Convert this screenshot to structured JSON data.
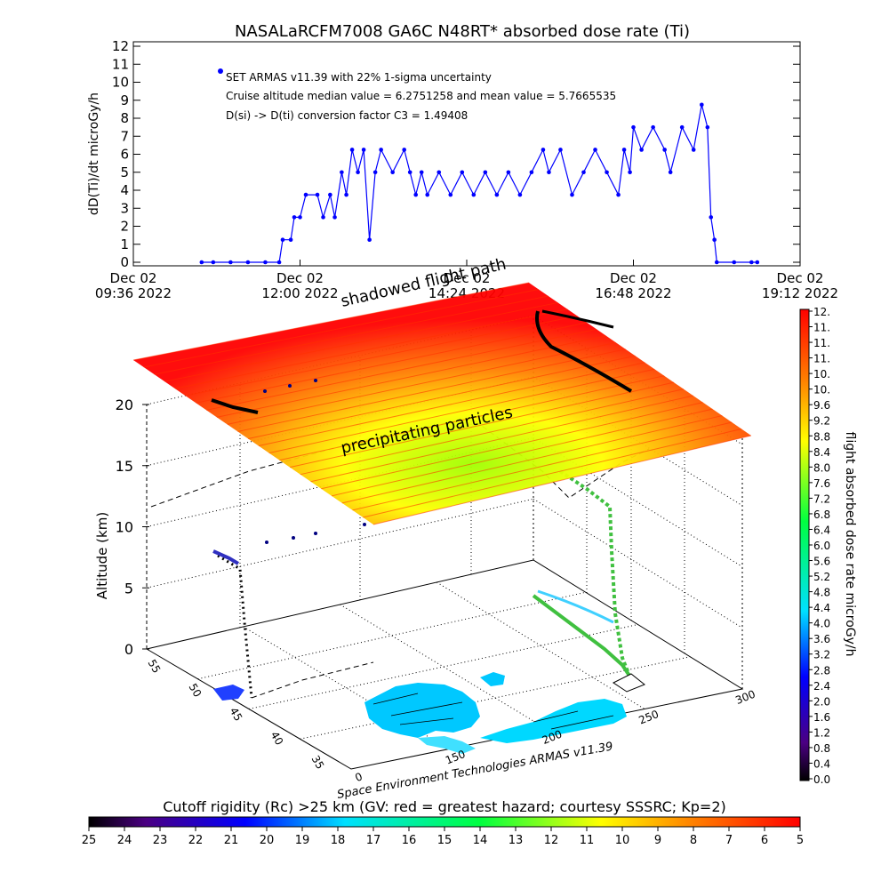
{
  "top_chart": {
    "title": "NASALaRCFM7008  GA6C N48RT* absorbed dose rate (Ti)",
    "ylabel": "dD(Ti)/dt microGy/h",
    "legend": [
      "SET ARMAS v11.39 with 22% 1-sigma uncertainty",
      "Cruise altitude median value = 6.2751258 and mean value = 5.7665535",
      "D(si) -> D(ti) conversion factor C3 = 1.49408"
    ],
    "x_ticks": [
      {
        "date": "Dec 02",
        "time": "09:36 2022"
      },
      {
        "date": "Dec 02",
        "time": "12:00 2022"
      },
      {
        "date": "Dec 02",
        "time": "14:24 2022"
      },
      {
        "date": "Dec 02",
        "time": "16:48 2022"
      },
      {
        "date": "Dec 02",
        "time": "19:12 2022"
      }
    ],
    "y_ticks": [
      "0",
      "1",
      "2",
      "3",
      "4",
      "5",
      "6",
      "7",
      "8",
      "9",
      "10",
      "11",
      "12"
    ]
  },
  "chart_data": [
    {
      "type": "line",
      "title": "NASALaRCFM7008  GA6C N48RT* absorbed dose rate (Ti)",
      "xlabel": "",
      "ylabel": "dD(Ti)/dt microGy/h",
      "x_range": [
        "2022-12-02 09:36",
        "2022-12-02 19:12"
      ],
      "ylim": [
        0,
        12
      ],
      "series": [
        {
          "name": "SET ARMAS v11.39 with 22% 1-sigma uncertainty",
          "color": "#0000ff",
          "points": [
            [
              "10:35",
              0
            ],
            [
              "10:45",
              0
            ],
            [
              "11:00",
              0
            ],
            [
              "11:15",
              0
            ],
            [
              "11:30",
              0
            ],
            [
              "11:42",
              0
            ],
            [
              "11:45",
              1.25
            ],
            [
              "11:52",
              1.25
            ],
            [
              "11:55",
              2.5
            ],
            [
              "12:00",
              2.5
            ],
            [
              "12:05",
              3.75
            ],
            [
              "12:15",
              3.75
            ],
            [
              "12:20",
              2.5
            ],
            [
              "12:26",
              3.75
            ],
            [
              "12:30",
              2.5
            ],
            [
              "12:36",
              5
            ],
            [
              "12:40",
              3.75
            ],
            [
              "12:45",
              6.25
            ],
            [
              "12:50",
              5
            ],
            [
              "12:55",
              6.25
            ],
            [
              "13:00",
              1.25
            ],
            [
              "13:05",
              5
            ],
            [
              "13:10",
              6.25
            ],
            [
              "13:20",
              5
            ],
            [
              "13:30",
              6.25
            ],
            [
              "13:35",
              5
            ],
            [
              "13:40",
              3.75
            ],
            [
              "13:45",
              5
            ],
            [
              "13:50",
              3.75
            ],
            [
              "14:00",
              5
            ],
            [
              "14:10",
              3.75
            ],
            [
              "14:20",
              5
            ],
            [
              "14:30",
              3.75
            ],
            [
              "14:40",
              5
            ],
            [
              "14:50",
              3.75
            ],
            [
              "15:00",
              5
            ],
            [
              "15:10",
              3.75
            ],
            [
              "15:20",
              5
            ],
            [
              "15:30",
              6.25
            ],
            [
              "15:35",
              5
            ],
            [
              "15:45",
              6.25
            ],
            [
              "15:55",
              3.75
            ],
            [
              "16:05",
              5
            ],
            [
              "16:15",
              6.25
            ],
            [
              "16:25",
              5
            ],
            [
              "16:35",
              3.75
            ],
            [
              "16:40",
              6.25
            ],
            [
              "16:45",
              5
            ],
            [
              "16:48",
              7.5
            ],
            [
              "16:55",
              6.25
            ],
            [
              "17:05",
              7.5
            ],
            [
              "17:15",
              6.25
            ],
            [
              "17:20",
              5
            ],
            [
              "17:30",
              7.5
            ],
            [
              "17:40",
              6.25
            ],
            [
              "17:47",
              8.75
            ],
            [
              "17:52",
              7.5
            ],
            [
              "17:55",
              2.5
            ],
            [
              "17:58",
              1.25
            ],
            [
              "18:00",
              0
            ],
            [
              "18:15",
              0
            ],
            [
              "18:30",
              0
            ],
            [
              "18:35",
              0
            ]
          ]
        }
      ],
      "annotations": [
        "SET ARMAS v11.39 with 22% 1-sigma uncertainty",
        "Cruise altitude median value = 6.2751258 and mean value = 5.7665535",
        "D(si) -> D(ti) conversion factor C3 = 1.49408"
      ]
    },
    {
      "type": "scatter",
      "title": "",
      "zlabel": "Altitude (km)",
      "zlim": [
        0,
        20
      ],
      "z_ticks": [
        "0",
        "5",
        "10",
        "15",
        "20"
      ],
      "lat_ticks": [
        "35",
        "40",
        "45",
        "50",
        "55"
      ],
      "lon_ticks": [
        "0",
        "150",
        "200",
        "250",
        "300"
      ],
      "colorbar": {
        "label": "flight absorbed dose rate microGy/h",
        "ticks": [
          "0.0",
          "0.4",
          "0.8",
          "1.2",
          "1.6",
          "2.0",
          "2.4",
          "2.8",
          "3.2",
          "3.6",
          "4.0",
          "4.4",
          "4.8",
          "5.2",
          "5.6",
          "6.0",
          "6.4",
          "6.8",
          "7.2",
          "7.6",
          "8.0",
          "8.4",
          "8.8",
          "9.2",
          "9.6",
          "10.",
          "10.",
          "11.",
          "11.",
          "11.",
          "12."
        ]
      }
    }
  ],
  "plot3d": {
    "annotations": {
      "shadowed": "shadowed flight path",
      "precip": "precipitating particles",
      "credit": "Space Environment Technologies ARMAS v11.39"
    }
  },
  "bottom_bar": {
    "title": "Cutoff rigidity (Rc) >25 km (GV: red = greatest hazard; courtesy SSSRC; Kp=2)",
    "ticks": [
      "25",
      "24",
      "23",
      "22",
      "21",
      "20",
      "19",
      "18",
      "17",
      "16",
      "15",
      "14",
      "13",
      "12",
      "11",
      "10",
      "9",
      "8",
      "7",
      "6",
      "5"
    ]
  }
}
